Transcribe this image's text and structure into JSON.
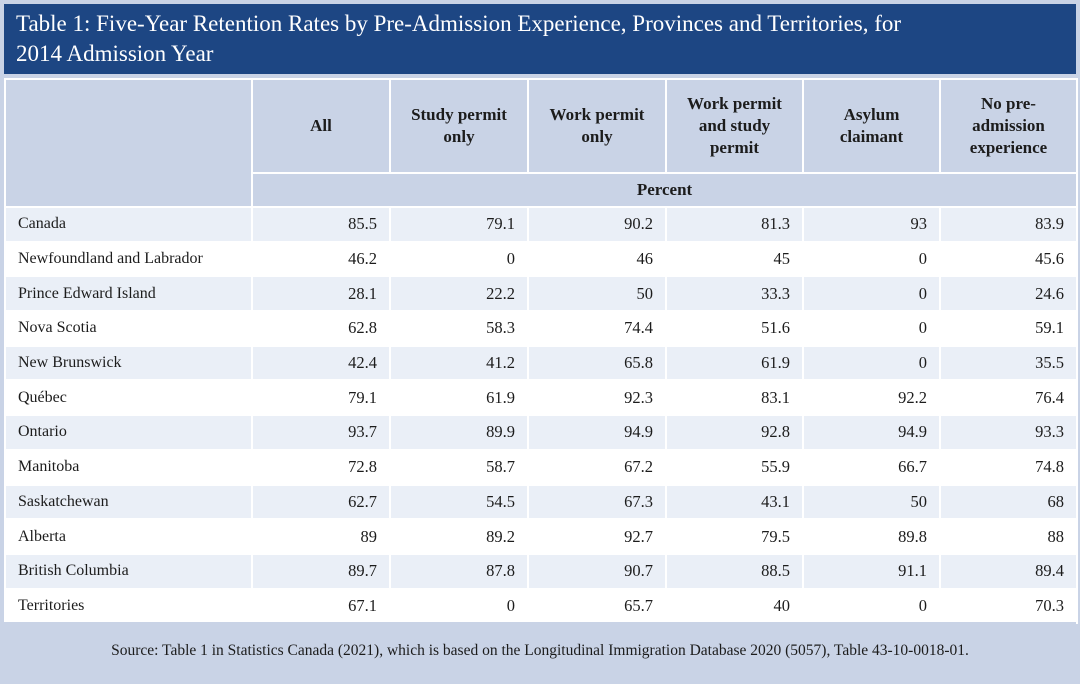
{
  "title": {
    "line1": "Table 1: Five-Year Retention Rates by Pre-Admission Experience, Provinces and Territories, for",
    "line2": "2014 Admission Year"
  },
  "columns": [
    "All",
    "Study permit only",
    "Work permit only",
    "Work permit and study permit",
    "Asylum claimant",
    "No pre-admission experience"
  ],
  "column_html_lines": [
    [
      "All"
    ],
    [
      "Study permit",
      "only"
    ],
    [
      "Work permit",
      "only"
    ],
    [
      "Work permit",
      "and study",
      "permit"
    ],
    [
      "Asylum",
      "claimant"
    ],
    [
      "No pre-",
      "admission",
      "experience"
    ]
  ],
  "unit_label": "Percent",
  "rows": [
    {
      "label": "Canada",
      "values": [
        "85.5",
        "79.1",
        "90.2",
        "81.3",
        "93",
        "83.9"
      ]
    },
    {
      "label": "Newfoundland and Labrador",
      "values": [
        "46.2",
        "0",
        "46",
        "45",
        "0",
        "45.6"
      ]
    },
    {
      "label": "Prince Edward Island",
      "values": [
        "28.1",
        "22.2",
        "50",
        "33.3",
        "0",
        "24.6"
      ]
    },
    {
      "label": "Nova Scotia",
      "values": [
        "62.8",
        "58.3",
        "74.4",
        "51.6",
        "0",
        "59.1"
      ]
    },
    {
      "label": "New Brunswick",
      "values": [
        "42.4",
        "41.2",
        "65.8",
        "61.9",
        "0",
        "35.5"
      ]
    },
    {
      "label": "Québec",
      "values": [
        "79.1",
        "61.9",
        "92.3",
        "83.1",
        "92.2",
        "76.4"
      ]
    },
    {
      "label": "Ontario",
      "values": [
        "93.7",
        "89.9",
        "94.9",
        "92.8",
        "94.9",
        "93.3"
      ]
    },
    {
      "label": "Manitoba",
      "values": [
        "72.8",
        "58.7",
        "67.2",
        "55.9",
        "66.7",
        "74.8"
      ]
    },
    {
      "label": "Saskatchewan",
      "values": [
        "62.7",
        "54.5",
        "67.3",
        "43.1",
        "50",
        "68"
      ]
    },
    {
      "label": "Alberta",
      "values": [
        "89",
        "89.2",
        "92.7",
        "79.5",
        "89.8",
        "88"
      ]
    },
    {
      "label": "British Columbia",
      "values": [
        "89.7",
        "87.8",
        "90.7",
        "88.5",
        "91.1",
        "89.4"
      ]
    },
    {
      "label": "Territories",
      "values": [
        "67.1",
        "0",
        "65.7",
        "40",
        "0",
        "70.3"
      ]
    }
  ],
  "source": "Source: Table 1 in Statistics Canada (2021), which is based on the Longitudinal Immigration Database 2020 (5057), Table 43-10-0018-01.",
  "colors": {
    "title_background": "#1d4683",
    "header_background": "#c9d3e6",
    "alt_row_background": "#eaeff7"
  }
}
